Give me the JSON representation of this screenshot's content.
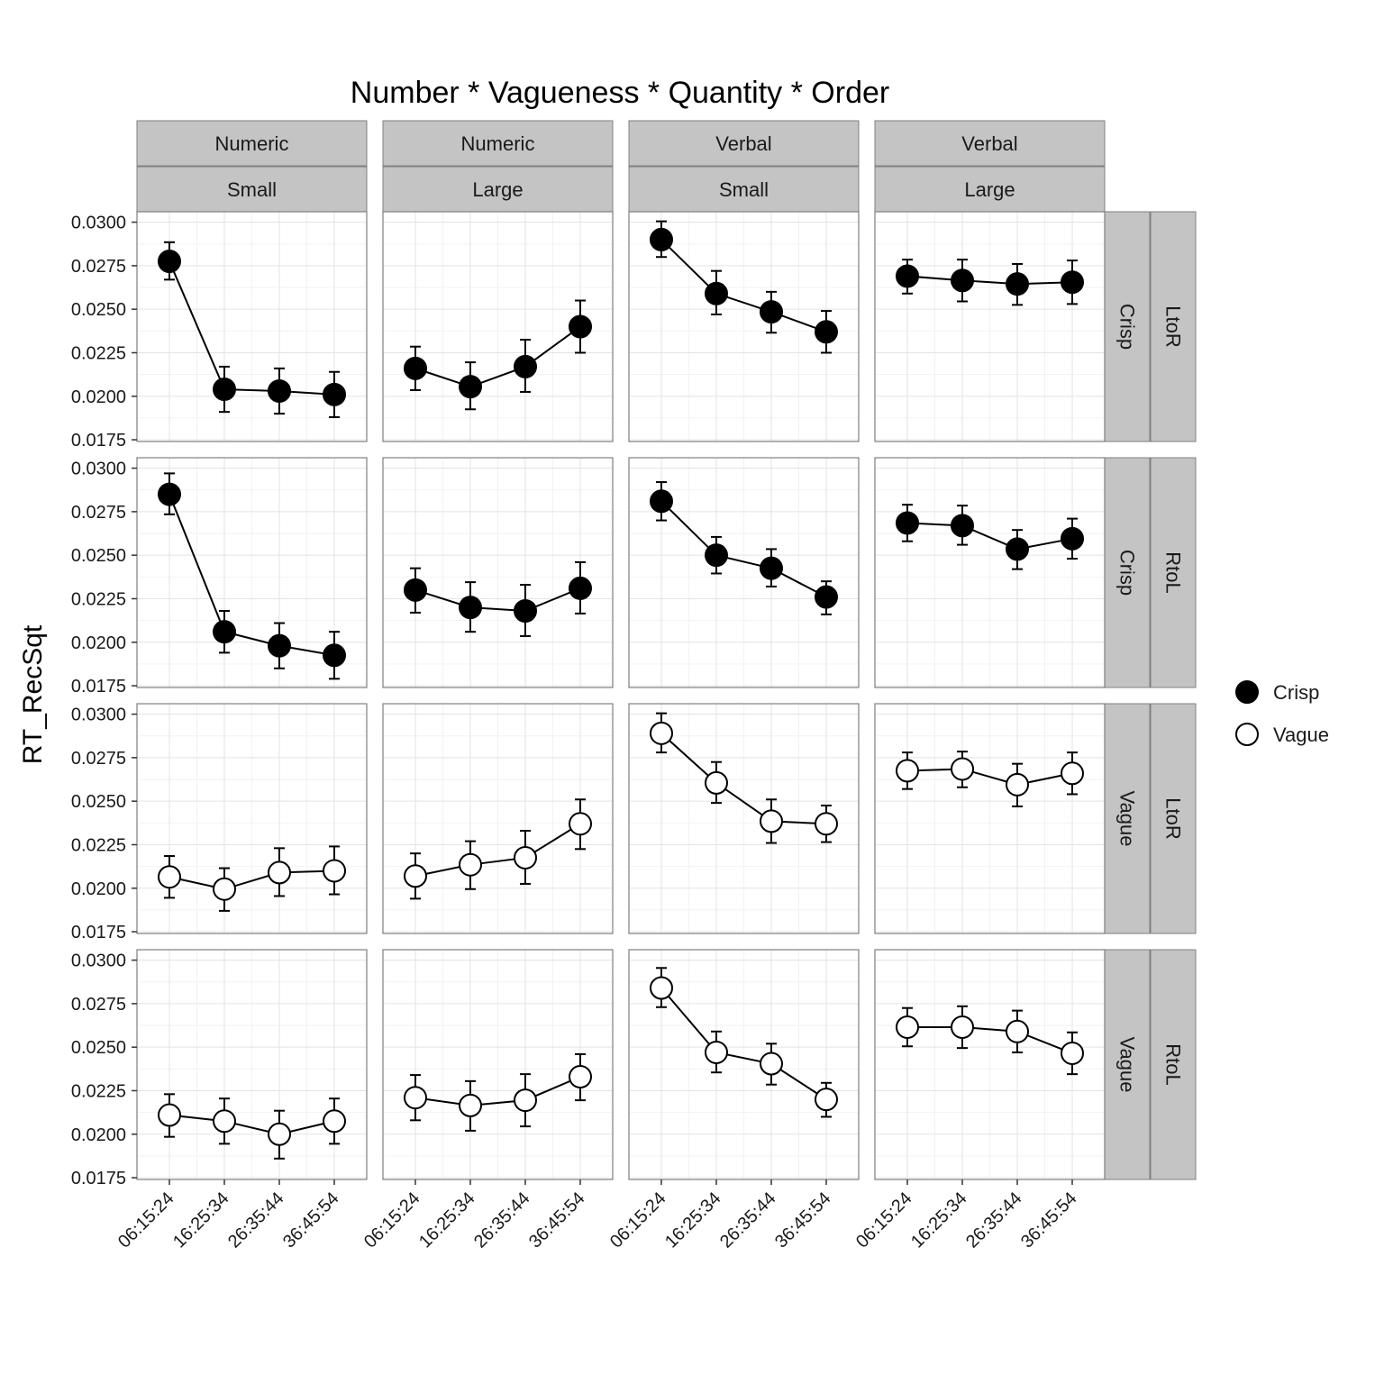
{
  "chart_data": {
    "type": "line",
    "title": "Number * Vagueness * Quantity * Order",
    "ylabel": "RT_RecSqt",
    "xlabel": "",
    "x": [
      "06:15:24",
      "16:25:34",
      "26:35:44",
      "36:45:54"
    ],
    "ylim": [
      0.0174,
      0.0306
    ],
    "yticks": [
      "0.0175",
      "0.0200",
      "0.0225",
      "0.0250",
      "0.0275",
      "0.0300"
    ],
    "grid": true,
    "legend_position": "right",
    "columns": [
      {
        "number": "Numeric",
        "quantity": "Small"
      },
      {
        "number": "Numeric",
        "quantity": "Large"
      },
      {
        "number": "Verbal",
        "quantity": "Small"
      },
      {
        "number": "Verbal",
        "quantity": "Large"
      }
    ],
    "rows": [
      {
        "vagueness": "Crisp",
        "order": "LtoR"
      },
      {
        "vagueness": "Crisp",
        "order": "RtoL"
      },
      {
        "vagueness": "Vague",
        "order": "LtoR"
      },
      {
        "vagueness": "Vague",
        "order": "RtoL"
      }
    ],
    "legend": [
      {
        "name": "Crisp",
        "fill": "#000000"
      },
      {
        "name": "Vague",
        "fill": "#ffffff"
      }
    ],
    "panels": [
      [
        {
          "values": [
            0.02775,
            0.0204,
            0.0203,
            0.0201
          ],
          "lower": [
            0.0267,
            0.0191,
            0.019,
            0.0188
          ],
          "upper": [
            0.02885,
            0.0217,
            0.0216,
            0.0214
          ]
        },
        {
          "values": [
            0.0216,
            0.02055,
            0.0217,
            0.024
          ],
          "lower": [
            0.02035,
            0.01925,
            0.02025,
            0.0225
          ],
          "upper": [
            0.02285,
            0.02195,
            0.02325,
            0.0255
          ]
        },
        {
          "values": [
            0.029,
            0.0259,
            0.02485,
            0.0237
          ],
          "lower": [
            0.028,
            0.0247,
            0.02365,
            0.0225
          ],
          "upper": [
            0.03005,
            0.0272,
            0.026,
            0.0249
          ]
        },
        {
          "values": [
            0.0269,
            0.02665,
            0.02645,
            0.02655
          ],
          "lower": [
            0.0259,
            0.02545,
            0.02525,
            0.0253
          ],
          "upper": [
            0.02785,
            0.02785,
            0.0276,
            0.0278
          ]
        }
      ],
      [
        {
          "values": [
            0.0285,
            0.0206,
            0.0198,
            0.01925
          ],
          "lower": [
            0.02735,
            0.0194,
            0.0185,
            0.0179
          ],
          "upper": [
            0.0297,
            0.0218,
            0.0211,
            0.0206
          ]
        },
        {
          "values": [
            0.023,
            0.022,
            0.0218,
            0.0231
          ],
          "lower": [
            0.0217,
            0.0206,
            0.02035,
            0.02165
          ],
          "upper": [
            0.02425,
            0.02345,
            0.0233,
            0.0246
          ]
        },
        {
          "values": [
            0.0281,
            0.025,
            0.02425,
            0.0226
          ],
          "lower": [
            0.027,
            0.02395,
            0.0232,
            0.0216
          ],
          "upper": [
            0.0292,
            0.02605,
            0.02535,
            0.0235
          ]
        },
        {
          "values": [
            0.02685,
            0.0267,
            0.02535,
            0.02595
          ],
          "lower": [
            0.0258,
            0.0256,
            0.0242,
            0.0248
          ],
          "upper": [
            0.0279,
            0.02785,
            0.02645,
            0.0271
          ]
        }
      ],
      [
        {
          "values": [
            0.02065,
            0.01995,
            0.0209,
            0.021
          ],
          "lower": [
            0.01945,
            0.0187,
            0.01955,
            0.01965
          ],
          "upper": [
            0.02185,
            0.02115,
            0.0223,
            0.0224
          ]
        },
        {
          "values": [
            0.0207,
            0.02135,
            0.02175,
            0.0237
          ],
          "lower": [
            0.0194,
            0.01995,
            0.02025,
            0.02225
          ],
          "upper": [
            0.022,
            0.0227,
            0.0233,
            0.0251
          ]
        },
        {
          "values": [
            0.0289,
            0.02605,
            0.02385,
            0.0237
          ],
          "lower": [
            0.0278,
            0.0249,
            0.0226,
            0.02265
          ],
          "upper": [
            0.03005,
            0.02725,
            0.0251,
            0.02475
          ]
        },
        {
          "values": [
            0.02675,
            0.02685,
            0.02595,
            0.0266
          ],
          "lower": [
            0.0257,
            0.0258,
            0.0247,
            0.0254
          ],
          "upper": [
            0.0278,
            0.02785,
            0.02715,
            0.0278
          ]
        }
      ],
      [
        {
          "values": [
            0.0211,
            0.02075,
            0.02,
            0.02075
          ],
          "lower": [
            0.01985,
            0.01945,
            0.0186,
            0.01945
          ],
          "upper": [
            0.0223,
            0.02205,
            0.02135,
            0.02205
          ]
        },
        {
          "values": [
            0.0221,
            0.02165,
            0.02195,
            0.0233
          ],
          "lower": [
            0.0208,
            0.0202,
            0.02045,
            0.02195
          ],
          "upper": [
            0.0234,
            0.02305,
            0.02345,
            0.0246
          ]
        },
        {
          "values": [
            0.0284,
            0.0247,
            0.02405,
            0.022
          ],
          "lower": [
            0.0273,
            0.02355,
            0.02285,
            0.021
          ],
          "upper": [
            0.02955,
            0.0259,
            0.0252,
            0.02295
          ]
        },
        {
          "values": [
            0.02615,
            0.02615,
            0.0259,
            0.02465
          ],
          "lower": [
            0.02505,
            0.02495,
            0.0247,
            0.02345
          ],
          "upper": [
            0.02725,
            0.02735,
            0.0271,
            0.02585
          ]
        }
      ]
    ]
  }
}
